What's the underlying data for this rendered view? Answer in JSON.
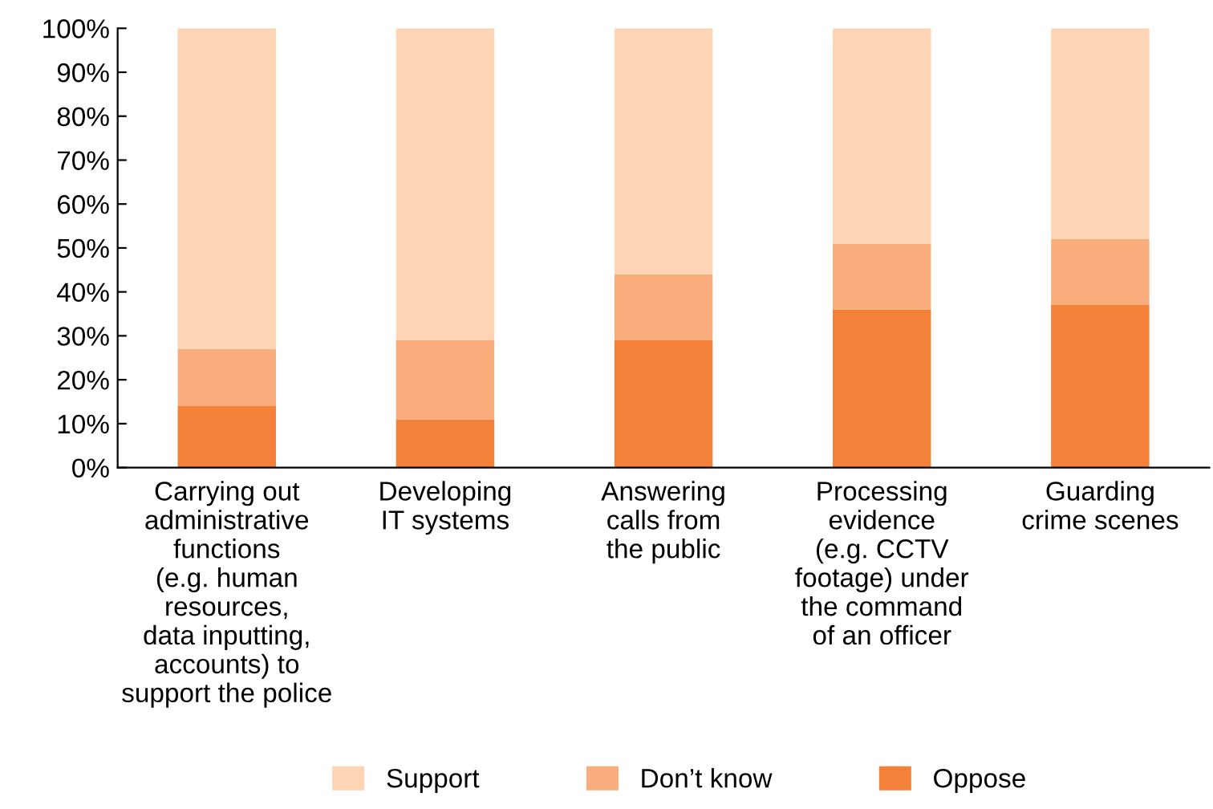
{
  "chart_data": {
    "type": "bar",
    "stacked": true,
    "categories": [
      "Carrying out\nadministrative\nfunctions\n(e.g. human\nresources,\ndata inputting,\naccounts) to\nsupport the police",
      "Developing\nIT systems",
      "Answering\ncalls from\nthe public",
      "Processing\nevidence\n(e.g. CCTV\nfootage) under\nthe command\nof an officer",
      "Guarding\ncrime scenes"
    ],
    "series": [
      {
        "name": "Oppose",
        "color": "#f4813a",
        "values": [
          14,
          11,
          29,
          36,
          37
        ]
      },
      {
        "name": "Don’t know",
        "color": "#f9ad7c",
        "values": [
          13,
          18,
          15,
          15,
          15
        ]
      },
      {
        "name": "Support",
        "color": "#fdd5b5",
        "values": [
          73,
          71,
          56,
          49,
          48
        ]
      }
    ],
    "ylim": [
      0,
      100
    ],
    "yticks": [
      {
        "value": 0,
        "label": "0%"
      },
      {
        "value": 10,
        "label": "10%"
      },
      {
        "value": 20,
        "label": "20%"
      },
      {
        "value": 30,
        "label": "30%"
      },
      {
        "value": 40,
        "label": "40%"
      },
      {
        "value": 50,
        "label": "50%"
      },
      {
        "value": 60,
        "label": "60%"
      },
      {
        "value": 70,
        "label": "70%"
      },
      {
        "value": 80,
        "label": "80%"
      },
      {
        "value": 90,
        "label": "90%"
      },
      {
        "value": 100,
        "label": "100%"
      }
    ],
    "grid": false,
    "legend": "bottom"
  }
}
